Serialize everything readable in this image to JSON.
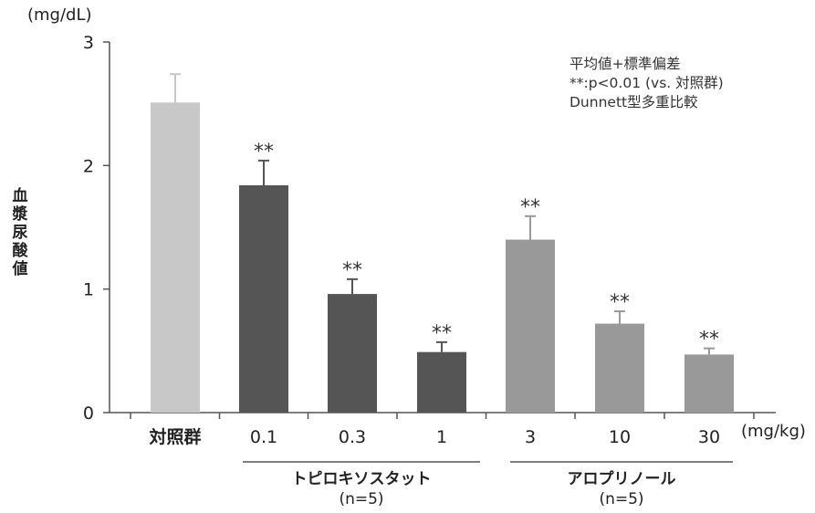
{
  "chart_data": {
    "type": "bar",
    "y_unit": "(mg/dL)",
    "ylabel": "血漿尿酸値",
    "ylim": [
      0,
      3
    ],
    "yticks": [
      "0",
      "1",
      "2",
      "3"
    ],
    "x_unit": "(mg/kg)",
    "categories": [
      "対照群",
      "0.1",
      "0.3",
      "1",
      "3",
      "10",
      "30"
    ],
    "values": [
      2.51,
      1.84,
      0.96,
      0.49,
      1.4,
      0.72,
      0.47
    ],
    "errors": [
      0.23,
      0.2,
      0.12,
      0.08,
      0.19,
      0.1,
      0.05
    ],
    "significance": [
      "",
      "**",
      "**",
      "**",
      "**",
      "**",
      "**"
    ],
    "colors": [
      "#c8c8c8",
      "#555555",
      "#555555",
      "#555555",
      "#999999",
      "#999999",
      "#999999"
    ],
    "groups": [
      {
        "name": "トピロキソスタット",
        "n": "(n=5)"
      },
      {
        "name": "アロプリノール",
        "n": "(n=5)"
      }
    ],
    "legend_lines": [
      "平均値+標準偏差",
      "**:p<0.01 (vs. 対照群)",
      "Dunnett型多重比較"
    ]
  }
}
